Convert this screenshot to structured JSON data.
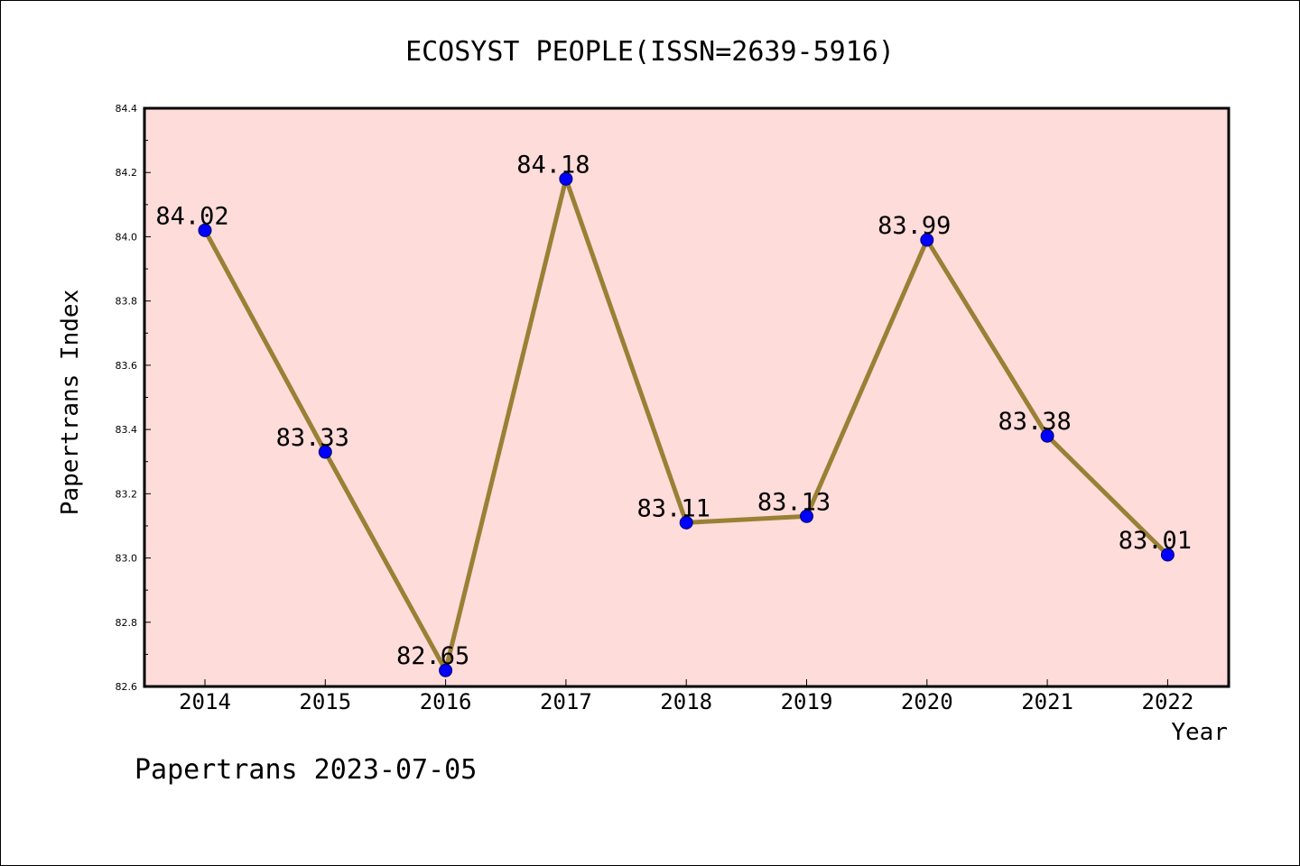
{
  "chart_data": {
    "type": "line",
    "title": "ECOSYST PEOPLE(ISSN=2639-5916)",
    "xlabel": "Year",
    "ylabel": "Papertrans Index",
    "categories": [
      "2014",
      "2015",
      "2016",
      "2017",
      "2018",
      "2019",
      "2020",
      "2021",
      "2022"
    ],
    "values": [
      84.02,
      83.33,
      82.65,
      84.18,
      83.11,
      83.13,
      83.99,
      83.38,
      83.01
    ],
    "data_labels": [
      "84.02",
      "83.33",
      "82.65",
      "84.18",
      "83.11",
      "83.13",
      "83.99",
      "83.38",
      "83.01"
    ],
    "ylim": [
      82.6,
      84.4
    ],
    "yticks": [
      "82.6",
      "82.8",
      "83.0",
      "83.2",
      "83.4",
      "83.6",
      "83.8",
      "84.0",
      "84.2",
      "84.4"
    ],
    "grid": false,
    "colors": {
      "plot_background": "#fddcda",
      "line": "#9a8035",
      "marker_fill": "#0000ff",
      "marker_edge": "#00006b",
      "frame": "#000000"
    }
  },
  "footer": "Papertrans 2023-07-05"
}
